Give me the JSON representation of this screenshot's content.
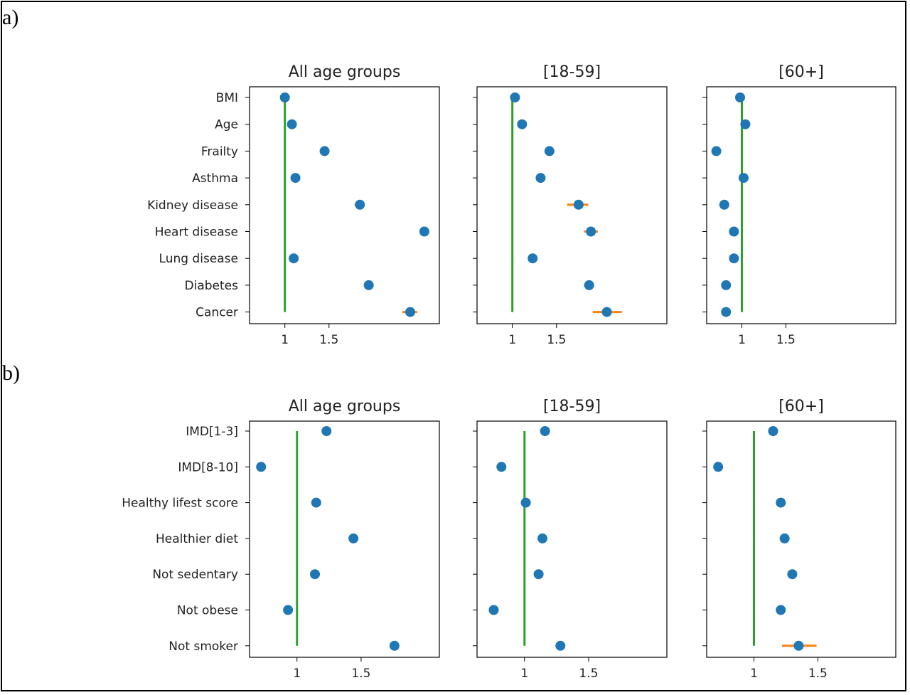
{
  "panels": {
    "a_label": "a)",
    "b_label": "b)"
  },
  "colors": {
    "point": "#1f77b4",
    "error_bar": "#ff7f0e",
    "reference_line": "#2ca02c",
    "axis": "#000000"
  },
  "chart_data": [
    {
      "type": "scatter",
      "panel": "a",
      "title": "All age groups",
      "categories": [
        "BMI",
        "Age",
        "Frailty",
        "Asthma",
        "Kidney disease",
        "Heart disease",
        "Lung disease",
        "Diabetes",
        "Cancer"
      ],
      "values": [
        1.0,
        1.08,
        1.45,
        1.12,
        1.85,
        2.58,
        1.1,
        1.95,
        2.42
      ],
      "error_low": [
        1.0,
        1.08,
        1.45,
        1.12,
        1.79,
        2.58,
        1.1,
        1.95,
        2.33
      ],
      "error_high": [
        1.0,
        1.08,
        1.45,
        1.12,
        1.88,
        2.58,
        1.1,
        1.95,
        2.5
      ],
      "reference_x": 1,
      "xticks": [
        1,
        1.5
      ],
      "xlim": [
        0.6,
        2.75
      ]
    },
    {
      "type": "scatter",
      "panel": "a",
      "title": "[18-59]",
      "categories": [
        "BMI",
        "Age",
        "Frailty",
        "Asthma",
        "Kidney disease",
        "Heart disease",
        "Lung disease",
        "Diabetes",
        "Cancer"
      ],
      "values": [
        1.03,
        1.11,
        1.42,
        1.32,
        1.75,
        1.89,
        1.23,
        1.87,
        2.07
      ],
      "error_low": [
        1.03,
        1.11,
        1.42,
        1.32,
        1.62,
        1.81,
        1.23,
        1.81,
        1.91
      ],
      "error_high": [
        1.03,
        1.11,
        1.42,
        1.32,
        1.86,
        1.97,
        1.23,
        1.91,
        2.24
      ],
      "reference_x": 1,
      "xticks": [
        1,
        1.5
      ],
      "xlim": [
        0.6,
        2.75
      ]
    },
    {
      "type": "scatter",
      "panel": "a",
      "title": "[60+]",
      "categories": [
        "BMI",
        "Age",
        "Frailty",
        "Asthma",
        "Kidney disease",
        "Heart disease",
        "Lung disease",
        "Diabetes",
        "Cancer"
      ],
      "values": [
        0.98,
        1.04,
        0.71,
        1.02,
        0.8,
        0.91,
        0.91,
        0.82,
        0.82
      ],
      "error_low": [
        0.98,
        1.04,
        0.71,
        1.02,
        0.8,
        0.91,
        0.91,
        0.82,
        0.82
      ],
      "error_high": [
        0.98,
        1.04,
        0.71,
        1.02,
        0.8,
        0.91,
        0.91,
        0.82,
        0.82
      ],
      "reference_x": 1,
      "xticks": [
        1,
        1.5
      ],
      "xlim": [
        0.6,
        2.75
      ]
    },
    {
      "type": "scatter",
      "panel": "b",
      "title": "All age groups",
      "categories": [
        "IMD[1-3]",
        "IMD[8-10]",
        "Healthy lifest score",
        "Healthier diet",
        "Not sedentary",
        "Not obese",
        "Not smoker"
      ],
      "values": [
        1.23,
        0.72,
        1.15,
        1.44,
        1.14,
        0.93,
        1.76
      ],
      "error_low": [
        1.23,
        0.72,
        1.15,
        1.44,
        1.14,
        0.93,
        1.74
      ],
      "error_high": [
        1.23,
        0.72,
        1.15,
        1.44,
        1.14,
        0.93,
        1.79
      ],
      "reference_x": 1,
      "xticks": [
        1,
        1.5
      ],
      "xlim": [
        0.63,
        2.11
      ]
    },
    {
      "type": "scatter",
      "panel": "b",
      "title": "[18-59]",
      "categories": [
        "IMD[1-3]",
        "IMD[8-10]",
        "Healthy lifest score",
        "Healthier diet",
        "Not sedentary",
        "Not obese",
        "Not smoker"
      ],
      "values": [
        1.16,
        0.82,
        1.01,
        1.14,
        1.11,
        0.76,
        1.28
      ],
      "error_low": [
        1.16,
        0.82,
        1.0,
        1.14,
        1.11,
        0.76,
        1.25
      ],
      "error_high": [
        1.16,
        0.82,
        1.02,
        1.14,
        1.11,
        0.76,
        1.3
      ],
      "reference_x": 1,
      "xticks": [
        1,
        1.5
      ],
      "xlim": [
        0.63,
        2.11
      ]
    },
    {
      "type": "scatter",
      "panel": "b",
      "title": "[60+]",
      "categories": [
        "IMD[1-3]",
        "IMD[8-10]",
        "Healthy lifest score",
        "Healthier diet",
        "Not sedentary",
        "Not obese",
        "Not smoker"
      ],
      "values": [
        1.15,
        0.72,
        1.21,
        1.24,
        1.3,
        1.21,
        1.35
      ],
      "error_low": [
        1.15,
        0.72,
        1.21,
        1.24,
        1.3,
        1.21,
        1.22
      ],
      "error_high": [
        1.15,
        0.72,
        1.21,
        1.24,
        1.3,
        1.21,
        1.49
      ],
      "reference_x": 1,
      "xticks": [
        1,
        1.5
      ],
      "xlim": [
        0.63,
        2.11
      ]
    }
  ]
}
